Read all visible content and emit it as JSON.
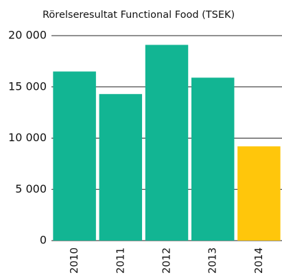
{
  "chart_data": {
    "type": "bar",
    "title": "Rörelseresultat Functional Food (TSEK)",
    "categories": [
      "2010",
      "2011",
      "2012",
      "2013",
      "2014"
    ],
    "values": [
      16500,
      14300,
      19100,
      15900,
      9200
    ],
    "colors": [
      "#12b593",
      "#12b593",
      "#12b593",
      "#12b593",
      "#ffc60b"
    ],
    "ylim": [
      0,
      20000
    ],
    "yticks": [
      0,
      {
        "value": 5000,
        "label": "5 000"
      },
      {
        "value": 10000,
        "label": "10 000"
      },
      {
        "value": 15000,
        "label": "15 000"
      },
      {
        "value": 20000,
        "label": "20 000"
      }
    ],
    "grid": true
  }
}
